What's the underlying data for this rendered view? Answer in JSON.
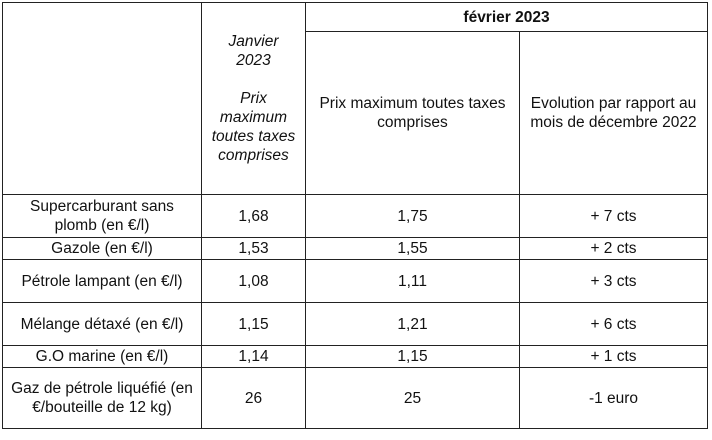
{
  "header": {
    "jan_month": "Janvier",
    "jan_year": "2023",
    "jan_desc": "Prix maximum toutes taxes comprises",
    "feb_month": "février 2023",
    "feb_price_col": "Prix maximum toutes taxes comprises",
    "feb_evolution_col": "Evolution par rapport au mois de décembre 2022"
  },
  "rows": [
    {
      "product": "Supercarburant sans plomb (en €/l)",
      "jan": "1,68",
      "feb": "1,75",
      "evolution": "+ 7 cts"
    },
    {
      "product": "Gazole (en €/l)",
      "jan": "1,53",
      "feb": "1,55",
      "evolution": "+ 2 cts"
    },
    {
      "product": "Pétrole lampant (en €/l)",
      "jan": "1,08",
      "feb": "1,11",
      "evolution": "+ 3 cts"
    },
    {
      "product": "Mélange détaxé (en €/l)",
      "jan": "1,15",
      "feb": "1,21",
      "evolution": "+ 6 cts"
    },
    {
      "product": "G.O marine (en €/l)",
      "jan": "1,14",
      "feb": "1,15",
      "evolution": "+ 1 cts"
    },
    {
      "product": "Gaz de pétrole liquéfié (en €/bouteille de 12 kg)",
      "jan": "26",
      "feb": "25",
      "evolution": "-1 euro"
    }
  ]
}
